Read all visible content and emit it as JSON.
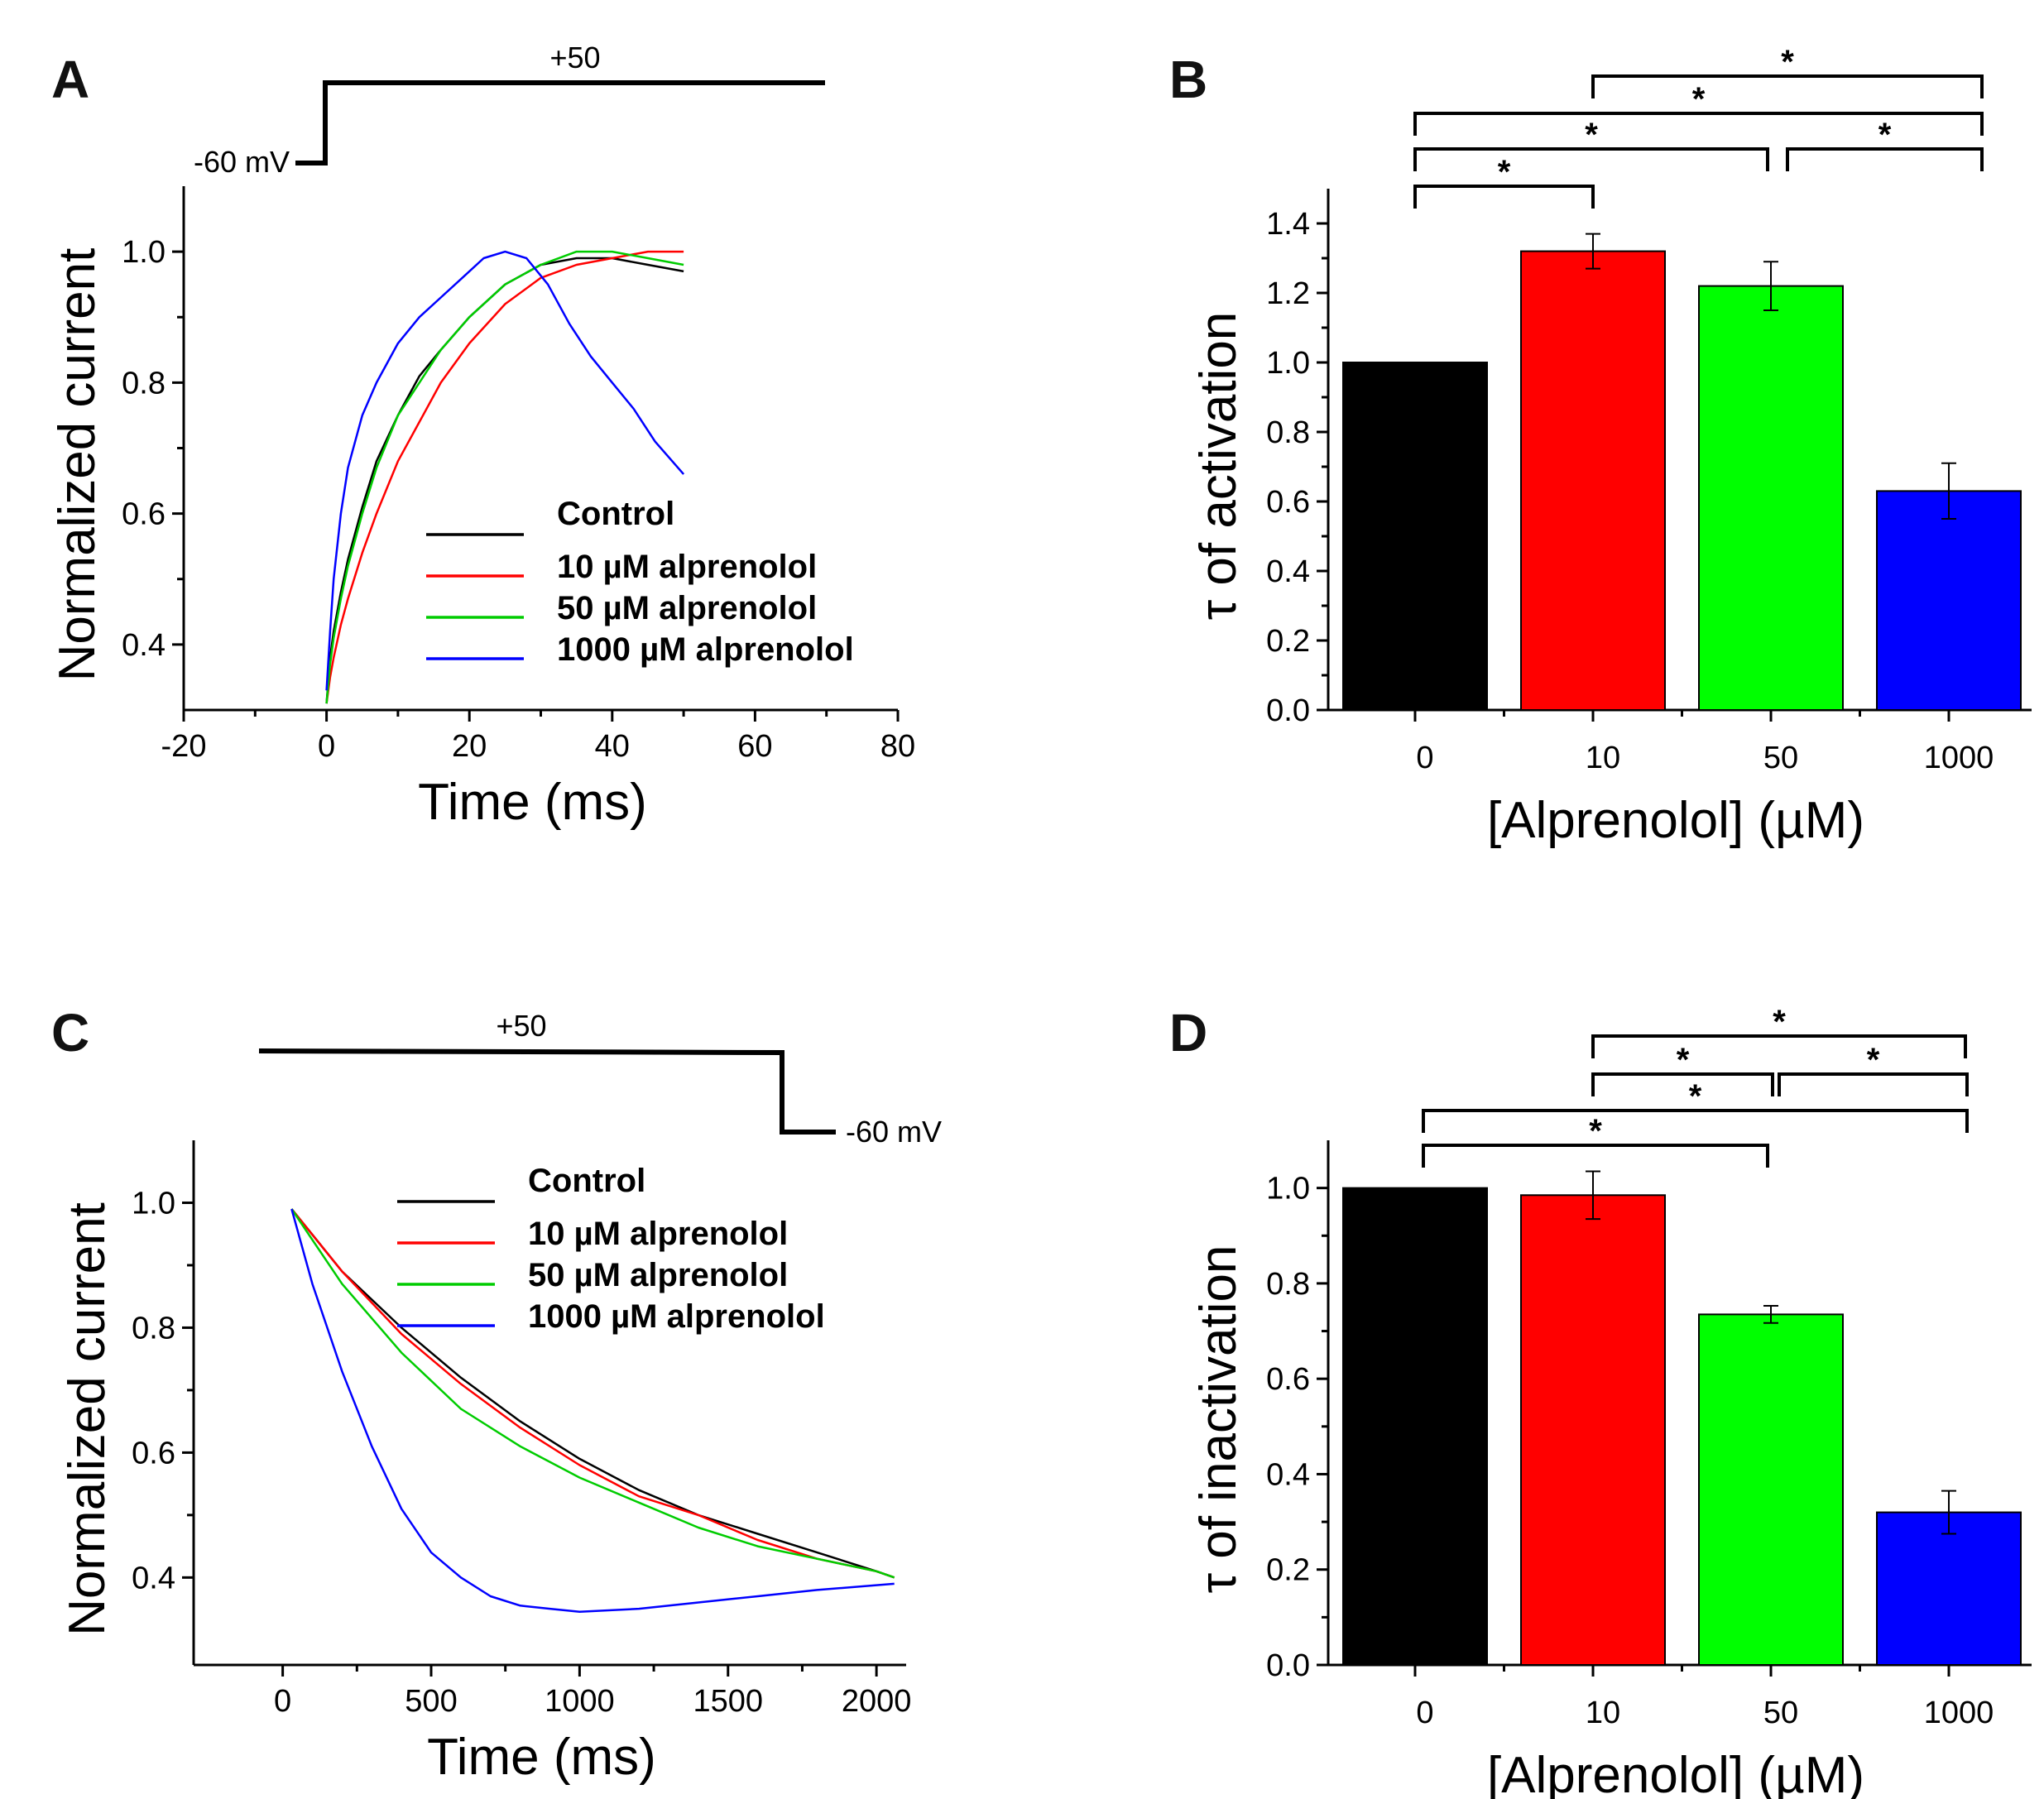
{
  "panels": {
    "A": {
      "letter": "A"
    },
    "B": {
      "letter": "B"
    },
    "C": {
      "letter": "C"
    },
    "D": {
      "letter": "D"
    }
  },
  "chart_data": [
    {
      "id": "A",
      "type": "line",
      "xlabel": "Time (ms)",
      "ylabel": "Normalized current",
      "xlim": [
        -20,
        80
      ],
      "ylim": [
        0.3,
        1.1
      ],
      "xticks": [
        "-20",
        "0",
        "20",
        "40",
        "60",
        "80"
      ],
      "yticks": [
        "0.4",
        "0.6",
        "0.8",
        "1.0"
      ],
      "legend_position": "lower-right",
      "protocol": {
        "hold_label": "-60 mV",
        "step_label": "+50"
      },
      "series": [
        {
          "name": "Control",
          "color": "#000000",
          "x": [
            0,
            0.5,
            1,
            2,
            3,
            5,
            7,
            10,
            13,
            16,
            20,
            25,
            30,
            35,
            40,
            45,
            50
          ],
          "y": [
            0.31,
            0.38,
            0.42,
            0.48,
            0.53,
            0.61,
            0.68,
            0.75,
            0.81,
            0.85,
            0.9,
            0.95,
            0.98,
            0.99,
            0.99,
            0.98,
            0.97
          ]
        },
        {
          "name": "10 µM alprenolol",
          "color": "#ff0000",
          "x": [
            0,
            0.5,
            1,
            2,
            3,
            5,
            7,
            10,
            13,
            16,
            20,
            25,
            30,
            35,
            40,
            45,
            50
          ],
          "y": [
            0.31,
            0.35,
            0.38,
            0.43,
            0.47,
            0.54,
            0.6,
            0.68,
            0.74,
            0.8,
            0.86,
            0.92,
            0.96,
            0.98,
            0.99,
            1.0,
            1.0
          ]
        },
        {
          "name": "50 µM alprenolol",
          "color": "#00cc00",
          "x": [
            0,
            0.5,
            1,
            2,
            3,
            5,
            7,
            10,
            13,
            16,
            20,
            25,
            30,
            35,
            40,
            45,
            50
          ],
          "y": [
            0.31,
            0.37,
            0.41,
            0.47,
            0.52,
            0.6,
            0.67,
            0.75,
            0.8,
            0.85,
            0.9,
            0.95,
            0.98,
            1.0,
            1.0,
            0.99,
            0.98
          ]
        },
        {
          "name": "1000 µM alprenolol",
          "color": "#0000ff",
          "x": [
            0,
            0.5,
            1,
            2,
            3,
            5,
            7,
            10,
            13,
            16,
            19,
            22,
            25,
            28,
            31,
            34,
            37,
            40,
            43,
            46,
            50
          ],
          "y": [
            0.33,
            0.42,
            0.5,
            0.6,
            0.67,
            0.75,
            0.8,
            0.86,
            0.9,
            0.93,
            0.96,
            0.99,
            1.0,
            0.99,
            0.95,
            0.89,
            0.84,
            0.8,
            0.76,
            0.71,
            0.66
          ]
        }
      ]
    },
    {
      "id": "B",
      "type": "bar",
      "xlabel": "[Alprenolol]  (µM)",
      "ylabel": "τ of activation",
      "categories": [
        "0",
        "10",
        "50",
        "1000"
      ],
      "values": [
        1.0,
        1.32,
        1.22,
        0.63
      ],
      "errors": [
        0,
        0.05,
        0.07,
        0.08
      ],
      "colors": [
        "#000000",
        "#ff0000",
        "#00ff00",
        "#0000ff"
      ],
      "ylim": [
        0,
        1.5
      ],
      "yticks": [
        "0.0",
        "0.2",
        "0.4",
        "0.6",
        "0.8",
        "1.0",
        "1.2",
        "1.4"
      ],
      "significance": [
        {
          "from": 0,
          "to": 1,
          "label": "*"
        },
        {
          "from": 0,
          "to": 2,
          "label": "*"
        },
        {
          "from": 2,
          "to": 3,
          "label": "*"
        },
        {
          "from": 0,
          "to": 3,
          "label": "*"
        },
        {
          "from": 1,
          "to": 3,
          "label": "*"
        }
      ]
    },
    {
      "id": "C",
      "type": "line",
      "xlabel": "Time (ms)",
      "ylabel": "Normalized current",
      "xlim": [
        -300,
        2100
      ],
      "ylim": [
        0.26,
        1.1
      ],
      "xticks": [
        "0",
        "500",
        "1000",
        "1500",
        "2000"
      ],
      "yticks": [
        "0.4",
        "0.6",
        "0.8",
        "1.0"
      ],
      "legend_position": "top-right",
      "protocol": {
        "hold_label": "-60 mV",
        "step_label": "+50"
      },
      "series": [
        {
          "name": "Control",
          "color": "#000000",
          "x": [
            30,
            200,
            400,
            600,
            800,
            1000,
            1200,
            1400,
            1600,
            1800,
            2000,
            2060
          ],
          "y": [
            0.99,
            0.89,
            0.8,
            0.72,
            0.65,
            0.59,
            0.54,
            0.5,
            0.47,
            0.44,
            0.41,
            0.4
          ]
        },
        {
          "name": "10 µM alprenolol",
          "color": "#ff0000",
          "x": [
            30,
            200,
            400,
            600,
            800,
            1000,
            1200,
            1400,
            1600,
            1800,
            2000,
            2060
          ],
          "y": [
            0.99,
            0.89,
            0.79,
            0.71,
            0.64,
            0.58,
            0.53,
            0.5,
            0.46,
            0.43,
            0.41,
            0.4
          ]
        },
        {
          "name": "50 µM alprenolol",
          "color": "#00cc00",
          "x": [
            30,
            200,
            400,
            600,
            800,
            1000,
            1200,
            1400,
            1600,
            1800,
            2000,
            2060
          ],
          "y": [
            0.99,
            0.87,
            0.76,
            0.67,
            0.61,
            0.56,
            0.52,
            0.48,
            0.45,
            0.43,
            0.41,
            0.4
          ]
        },
        {
          "name": "1000 µM alprenolol",
          "color": "#0000ff",
          "x": [
            30,
            100,
            200,
            300,
            400,
            500,
            600,
            700,
            800,
            900,
            1000,
            1200,
            1400,
            1600,
            1800,
            2060
          ],
          "y": [
            0.99,
            0.87,
            0.73,
            0.61,
            0.51,
            0.44,
            0.4,
            0.37,
            0.355,
            0.35,
            0.345,
            0.35,
            0.36,
            0.37,
            0.38,
            0.39
          ]
        }
      ]
    },
    {
      "id": "D",
      "type": "bar",
      "xlabel": "[Alprenolol]  (µM)",
      "ylabel": "τ of inactivation",
      "categories": [
        "0",
        "10",
        "50",
        "1000"
      ],
      "values": [
        1.0,
        0.985,
        0.735,
        0.32
      ],
      "errors": [
        0,
        0.05,
        0.018,
        0.045
      ],
      "colors": [
        "#000000",
        "#ff0000",
        "#00ff00",
        "#0000ff"
      ],
      "ylim": [
        0,
        1.1
      ],
      "yticks": [
        "0.0",
        "0.2",
        "0.4",
        "0.6",
        "0.8",
        "1.0"
      ],
      "significance": [
        {
          "from": 0,
          "to": 2,
          "label": "*"
        },
        {
          "from": 0,
          "to": 3,
          "label": "*"
        },
        {
          "from": 1,
          "to": 2,
          "label": "*"
        },
        {
          "from": 2,
          "to": 3,
          "label": "*"
        },
        {
          "from": 1,
          "to": 3,
          "label": "*"
        }
      ]
    }
  ]
}
